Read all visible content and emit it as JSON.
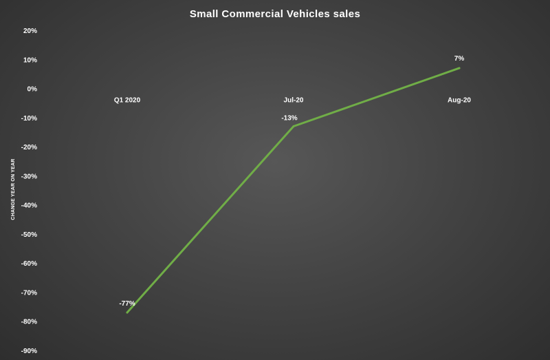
{
  "chart_data": {
    "type": "line",
    "title": "Small Commercial Vehicles sales",
    "xlabel": "",
    "ylabel": "CHANGE YEAR ON YEAR",
    "categories": [
      "Q1 2020",
      "Jul-20",
      "Aug-20"
    ],
    "series": [
      {
        "values": [
          -77,
          -13,
          7
        ],
        "color": "#70ad47"
      }
    ],
    "data_labels": [
      "-77%",
      "-13%",
      "7%"
    ],
    "ylim": [
      -90,
      20
    ],
    "yticks": [
      20,
      10,
      0,
      -10,
      -20,
      -30,
      -40,
      -50,
      -60,
      -70,
      -80,
      -90
    ],
    "ytick_labels": [
      "20%",
      "10%",
      "0%",
      "-10%",
      "-20%",
      "-30%",
      "-40%",
      "-50%",
      "-60%",
      "-70%",
      "-80%",
      "-90%"
    ],
    "grid": false,
    "legend": "none"
  }
}
